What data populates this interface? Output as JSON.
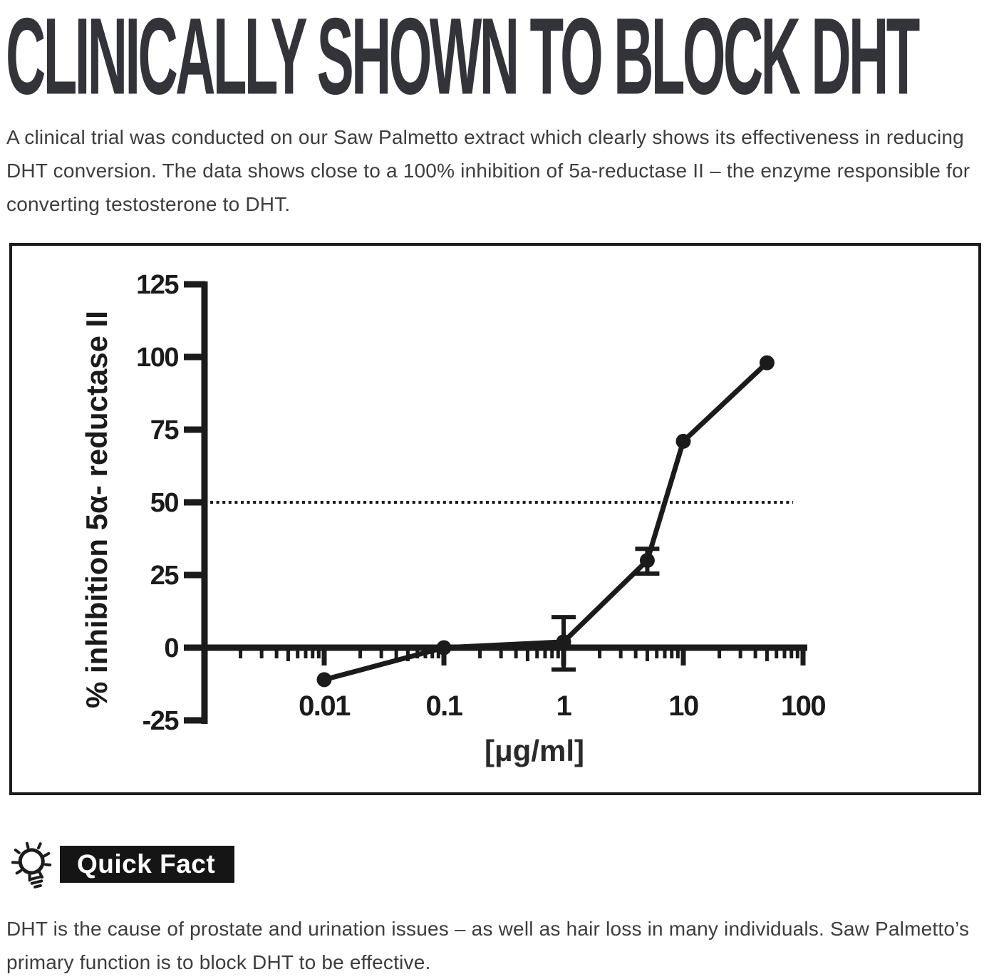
{
  "header": {
    "title": "CLINICALLY SHOWN TO BLOCK DHT",
    "color": "#33343a"
  },
  "intro": {
    "text": "A clinical trial was conducted on our Saw Palmetto extract which clearly shows its effectiveness in reducing DHT conversion. The data shows close to a 100% inhibition of 5a-reductase II – the enzyme responsible for converting testosterone to DHT."
  },
  "chart_data": {
    "type": "line",
    "x": [
      0.01,
      0.1,
      1,
      5,
      10,
      50
    ],
    "y": [
      -11,
      0,
      2,
      30,
      71,
      98
    ],
    "error_up": [
      0,
      0,
      8.5,
      4,
      0,
      0
    ],
    "error_down": [
      0,
      0,
      9.5,
      4.5,
      0,
      0
    ],
    "xscale": "log",
    "x_ticks": [
      0.01,
      0.1,
      1,
      10,
      100
    ],
    "x_tick_labels": [
      "0.01",
      "0.1",
      "1",
      "10",
      "100"
    ],
    "y_ticks": [
      125,
      100,
      75,
      50,
      25,
      0,
      -25
    ],
    "xlabel": "[μg/ml]",
    "ylabel": "% inhibition 5α- reductase II",
    "reference_line_y": 50,
    "reference_line_style": "dotted",
    "xlim": [
      0.001,
      130
    ],
    "ylim": [
      -25,
      125
    ],
    "grid": false,
    "legend": "none",
    "line_color": "#1b1b1b",
    "marker": "circle"
  },
  "quick_fact": {
    "icon": "lightbulb-icon",
    "badge_label": "Quick Fact",
    "badge_bg": "#151515",
    "badge_text_color": "#ffffff",
    "text": "DHT is the cause of prostate and urination issues – as well as hair loss in many individuals. Saw Palmetto’s primary function is to block DHT to be effective."
  }
}
